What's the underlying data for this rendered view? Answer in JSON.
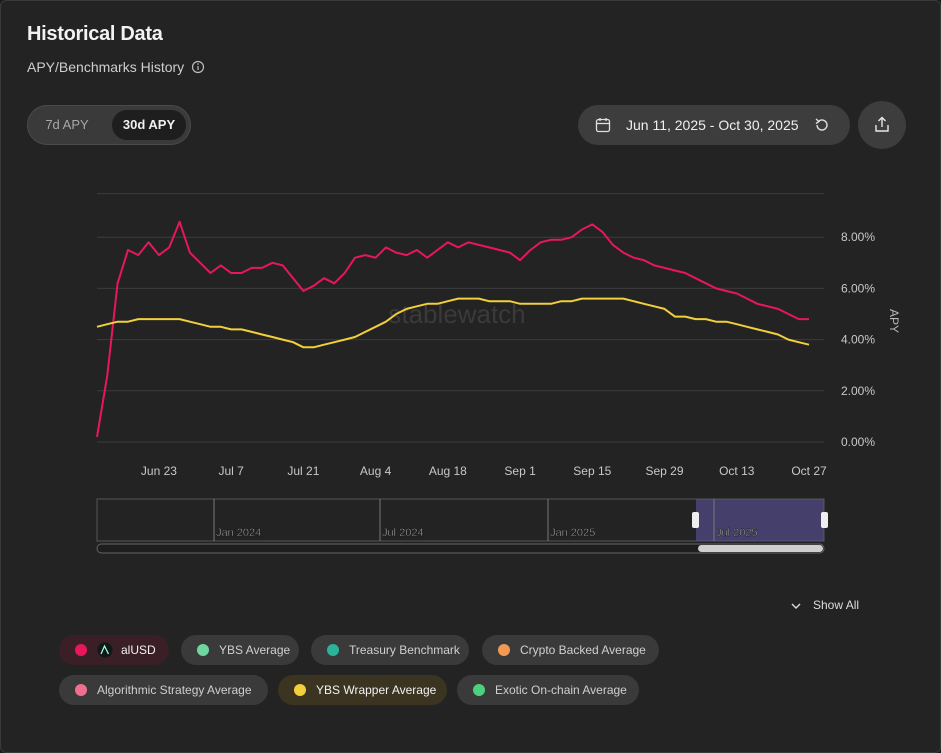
{
  "header": {
    "title": "Historical Data",
    "subtitle": "APY/Benchmarks History"
  },
  "tabs": [
    "7d APY",
    "30d APY"
  ],
  "active_tab": 1,
  "date_range": "Jun 11, 2025 - Oct 30, 2025",
  "show_all": "Show All",
  "chart_data": {
    "type": "line",
    "watermark": "stablewatch",
    "y_label": "APY",
    "x": [
      "Jun 11",
      "Jun 13",
      "Jun 15",
      "Jun 17",
      "Jun 19",
      "Jun 21",
      "Jun 23",
      "Jun 25",
      "Jun 27",
      "Jun 29",
      "Jul 1",
      "Jul 3",
      "Jul 5",
      "Jul 7",
      "Jul 9",
      "Jul 11",
      "Jul 13",
      "Jul 15",
      "Jul 17",
      "Jul 19",
      "Jul 21",
      "Jul 23",
      "Jul 25",
      "Jul 27",
      "Jul 29",
      "Jul 31",
      "Aug 2",
      "Aug 4",
      "Aug 6",
      "Aug 8",
      "Aug 10",
      "Aug 12",
      "Aug 14",
      "Aug 16",
      "Aug 18",
      "Aug 20",
      "Aug 22",
      "Aug 24",
      "Aug 26",
      "Aug 28",
      "Aug 30",
      "Sep 1",
      "Sep 3",
      "Sep 5",
      "Sep 7",
      "Sep 9",
      "Sep 11",
      "Sep 13",
      "Sep 15",
      "Sep 17",
      "Sep 19",
      "Sep 21",
      "Sep 23",
      "Sep 25",
      "Sep 27",
      "Sep 29",
      "Oct 1",
      "Oct 3",
      "Oct 5",
      "Oct 7",
      "Oct 9",
      "Oct 11",
      "Oct 13",
      "Oct 15",
      "Oct 17",
      "Oct 19",
      "Oct 21",
      "Oct 23",
      "Oct 25",
      "Oct 27"
    ],
    "xticks": [
      "Jun 23",
      "Jul 7",
      "Jul 21",
      "Aug 4",
      "Aug 18",
      "Sep 1",
      "Sep 15",
      "Sep 29",
      "Oct 13",
      "Oct 27"
    ],
    "ylim": [
      0,
      9.7
    ],
    "yticks": [
      {
        "value": 0,
        "label": "0.00%"
      },
      {
        "value": 2,
        "label": "2.00%"
      },
      {
        "value": 4,
        "label": "4.00%"
      },
      {
        "value": 6,
        "label": "6.00%"
      },
      {
        "value": 8,
        "label": "8.00%"
      }
    ],
    "grid": true,
    "series": [
      {
        "name": "alUSD",
        "color": "#e8175d",
        "visible": true,
        "values": [
          0.2,
          2.6,
          6.2,
          7.5,
          7.3,
          7.8,
          7.3,
          7.6,
          8.6,
          7.4,
          7.0,
          6.6,
          6.9,
          6.6,
          6.6,
          6.8,
          6.8,
          7.0,
          6.9,
          6.4,
          5.9,
          6.1,
          6.4,
          6.2,
          6.6,
          7.2,
          7.3,
          7.2,
          7.6,
          7.4,
          7.3,
          7.5,
          7.2,
          7.5,
          7.8,
          7.6,
          7.8,
          7.7,
          7.6,
          7.5,
          7.4,
          7.1,
          7.5,
          7.8,
          7.9,
          7.9,
          8.0,
          8.3,
          8.5,
          8.2,
          7.7,
          7.4,
          7.2,
          7.1,
          6.9,
          6.8,
          6.7,
          6.6,
          6.4,
          6.2,
          6.0,
          5.9,
          5.8,
          5.6,
          5.4,
          5.3,
          5.2,
          5.0,
          4.8,
          4.8
        ]
      },
      {
        "name": "YBS Average",
        "color": "#6fd6a0",
        "visible": false
      },
      {
        "name": "Treasury Benchmark",
        "color": "#2bb39a",
        "visible": false
      },
      {
        "name": "Crypto Backed Average",
        "color": "#f29a55",
        "visible": false
      },
      {
        "name": "Algorithmic Strategy Average",
        "color": "#ef6f8f",
        "visible": false
      },
      {
        "name": "YBS Wrapper Average",
        "color": "#f2cf3b",
        "visible": true,
        "values": [
          4.5,
          4.6,
          4.7,
          4.7,
          4.8,
          4.8,
          4.8,
          4.8,
          4.8,
          4.7,
          4.6,
          4.5,
          4.5,
          4.4,
          4.4,
          4.3,
          4.2,
          4.1,
          4.0,
          3.9,
          3.7,
          3.7,
          3.8,
          3.9,
          4.0,
          4.1,
          4.3,
          4.5,
          4.7,
          5.0,
          5.2,
          5.3,
          5.4,
          5.4,
          5.5,
          5.6,
          5.6,
          5.6,
          5.5,
          5.5,
          5.5,
          5.4,
          5.4,
          5.4,
          5.4,
          5.5,
          5.5,
          5.6,
          5.6,
          5.6,
          5.6,
          5.6,
          5.5,
          5.4,
          5.3,
          5.2,
          4.9,
          4.9,
          4.8,
          4.8,
          4.7,
          4.7,
          4.6,
          4.5,
          4.4,
          4.3,
          4.2,
          4.0,
          3.9,
          3.8
        ]
      },
      {
        "name": "Exotic On-chain Average",
        "color": "#4cd07d",
        "visible": false
      }
    ],
    "navigator_labels": [
      "Jan 2024",
      "Jul 2024",
      "Jan 2025",
      "Jul 2025"
    ]
  }
}
